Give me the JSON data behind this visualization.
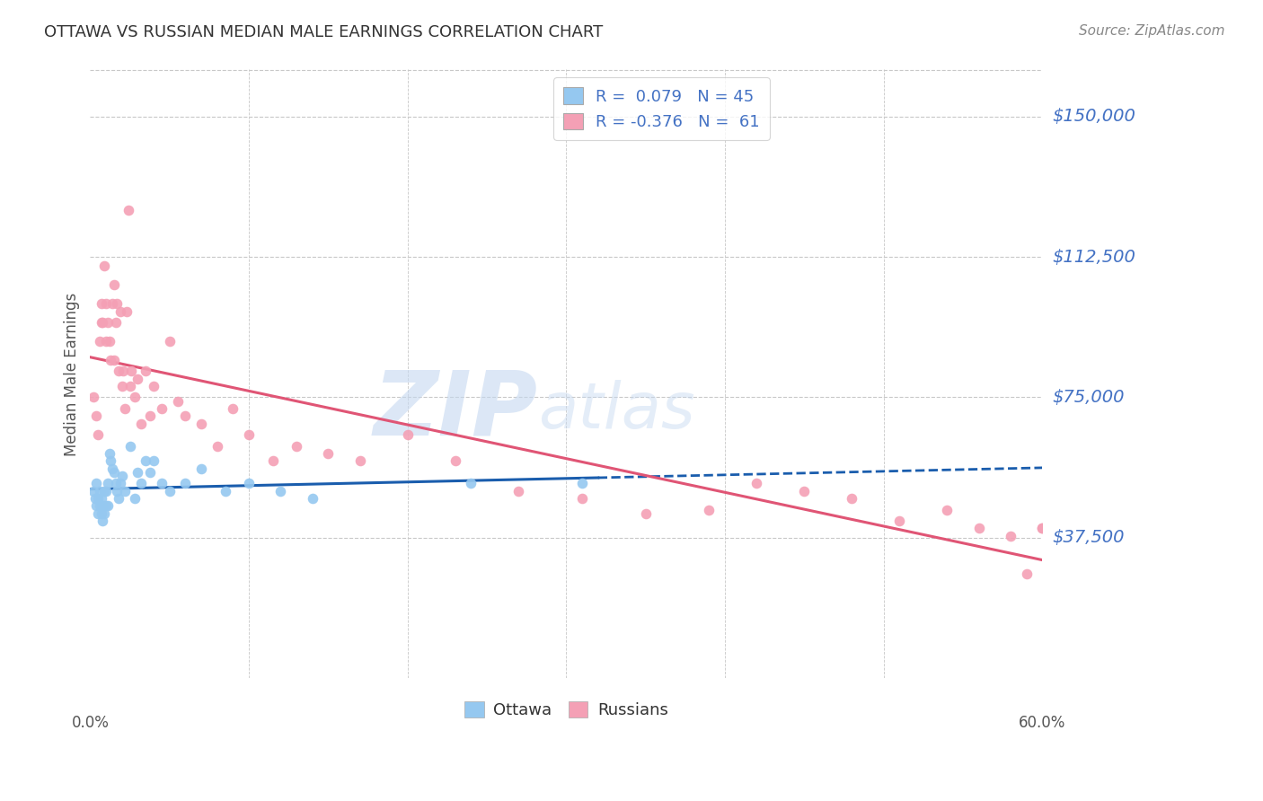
{
  "title": "OTTAWA VS RUSSIAN MEDIAN MALE EARNINGS CORRELATION CHART",
  "source": "Source: ZipAtlas.com",
  "ylabel": "Median Male Earnings",
  "ytick_labels": [
    "$37,500",
    "$75,000",
    "$112,500",
    "$150,000"
  ],
  "ytick_vals": [
    37500,
    75000,
    112500,
    150000
  ],
  "ymin": 0,
  "ymax": 162500,
  "xmin": 0.0,
  "xmax": 0.6,
  "xtick_labels": [
    "0.0%",
    "60.0%"
  ],
  "xtick_vals": [
    0.0,
    0.6
  ],
  "watermark_zip": "ZIP",
  "watermark_atlas": "atlas",
  "legend_r_ottawa": "0.079",
  "legend_n_ottawa": "45",
  "legend_r_russian": "-0.376",
  "legend_n_russian": "61",
  "ottawa_color": "#95C8F0",
  "russian_color": "#F4A0B5",
  "ottawa_line_color": "#1A5DAD",
  "russian_line_color": "#E05575",
  "grid_color": "#C8C8C8",
  "background_color": "#FFFFFF",
  "label_color": "#4472C4",
  "ottawa_x": [
    0.002,
    0.003,
    0.004,
    0.004,
    0.005,
    0.005,
    0.006,
    0.006,
    0.007,
    0.007,
    0.008,
    0.008,
    0.009,
    0.009,
    0.01,
    0.01,
    0.011,
    0.011,
    0.012,
    0.013,
    0.014,
    0.015,
    0.016,
    0.017,
    0.018,
    0.019,
    0.02,
    0.022,
    0.025,
    0.028,
    0.03,
    0.032,
    0.035,
    0.038,
    0.04,
    0.045,
    0.05,
    0.06,
    0.07,
    0.085,
    0.1,
    0.12,
    0.14,
    0.24,
    0.31
  ],
  "ottawa_y": [
    50000,
    48000,
    46000,
    52000,
    44000,
    48000,
    46000,
    50000,
    44000,
    48000,
    42000,
    46000,
    44000,
    50000,
    46000,
    50000,
    46000,
    52000,
    60000,
    58000,
    56000,
    55000,
    52000,
    50000,
    48000,
    52000,
    54000,
    50000,
    62000,
    48000,
    55000,
    52000,
    58000,
    55000,
    58000,
    52000,
    50000,
    52000,
    56000,
    50000,
    52000,
    50000,
    48000,
    52000,
    52000
  ],
  "russian_x": [
    0.002,
    0.004,
    0.005,
    0.006,
    0.007,
    0.007,
    0.008,
    0.009,
    0.01,
    0.01,
    0.011,
    0.012,
    0.013,
    0.014,
    0.015,
    0.015,
    0.016,
    0.017,
    0.018,
    0.019,
    0.02,
    0.021,
    0.022,
    0.023,
    0.024,
    0.025,
    0.026,
    0.028,
    0.03,
    0.032,
    0.035,
    0.038,
    0.04,
    0.045,
    0.05,
    0.055,
    0.06,
    0.07,
    0.08,
    0.09,
    0.1,
    0.115,
    0.13,
    0.15,
    0.17,
    0.2,
    0.23,
    0.27,
    0.31,
    0.35,
    0.39,
    0.42,
    0.45,
    0.48,
    0.51,
    0.54,
    0.56,
    0.58,
    0.59,
    0.6,
    0.6
  ],
  "russian_y": [
    75000,
    70000,
    65000,
    90000,
    95000,
    100000,
    95000,
    110000,
    90000,
    100000,
    95000,
    90000,
    85000,
    100000,
    85000,
    105000,
    95000,
    100000,
    82000,
    98000,
    78000,
    82000,
    72000,
    98000,
    125000,
    78000,
    82000,
    75000,
    80000,
    68000,
    82000,
    70000,
    78000,
    72000,
    90000,
    74000,
    70000,
    68000,
    62000,
    72000,
    65000,
    58000,
    62000,
    60000,
    58000,
    65000,
    58000,
    50000,
    48000,
    44000,
    45000,
    52000,
    50000,
    48000,
    42000,
    45000,
    40000,
    38000,
    28000,
    40000,
    40000
  ]
}
